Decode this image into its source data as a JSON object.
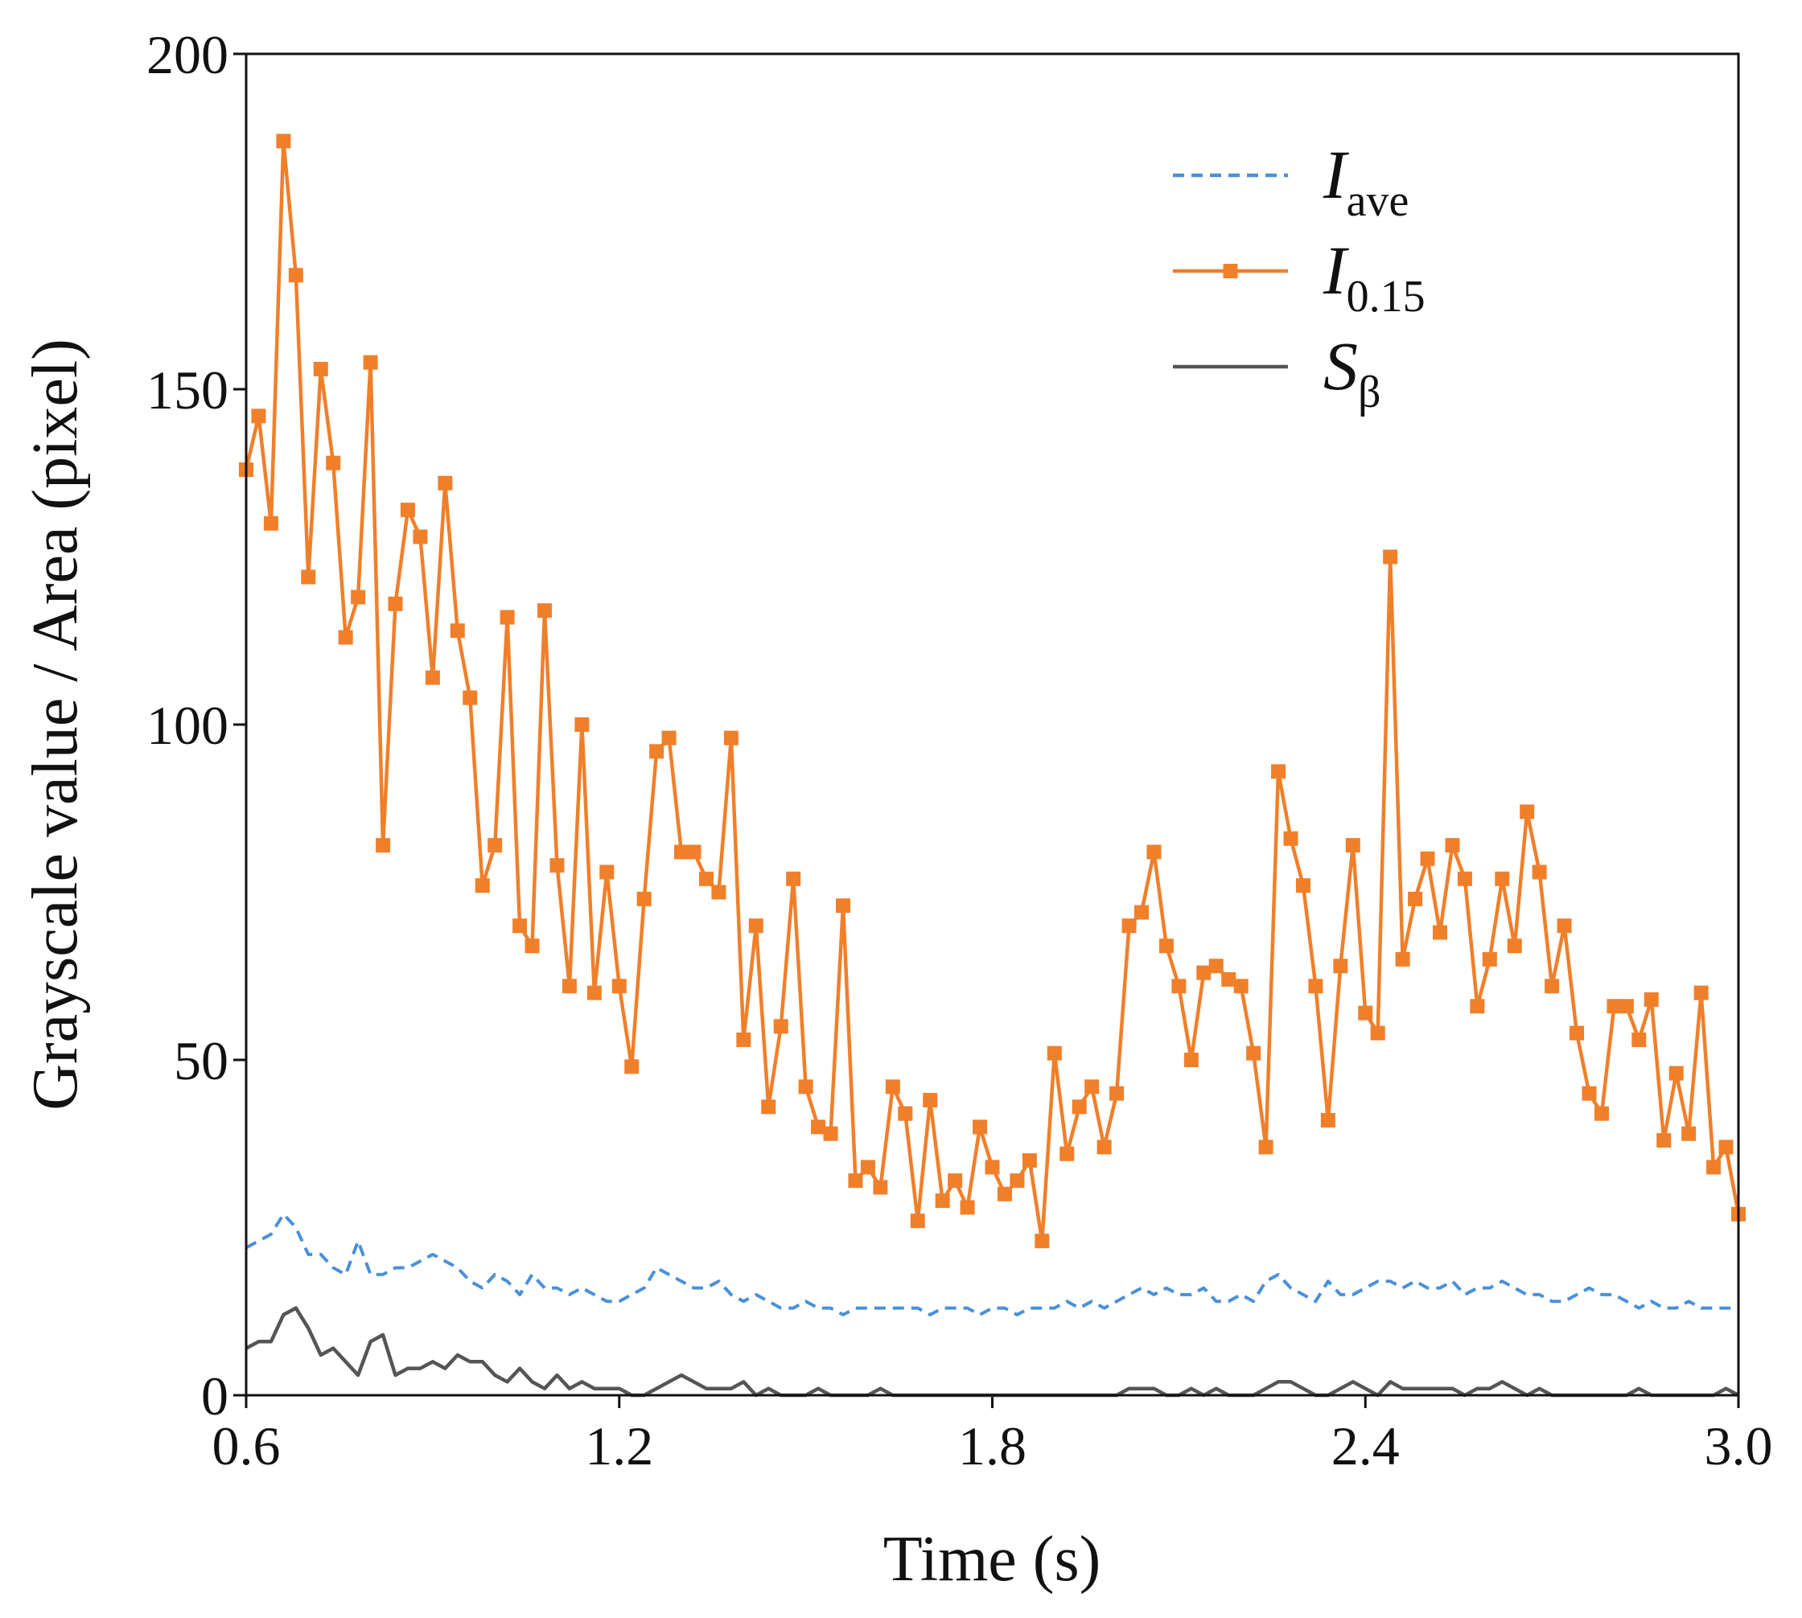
{
  "chart_data": {
    "type": "line",
    "xlabel": "Time (s)",
    "ylabel": "Grayscale value / Area (pixel)",
    "xlim": [
      0.6,
      3.0
    ],
    "ylim": [
      0,
      200
    ],
    "xticks": [
      0.6,
      1.2,
      1.8,
      2.4,
      {
        "value": 3.0,
        "label": "3.0"
      }
    ],
    "yticks": [
      0,
      50,
      100,
      150,
      200
    ],
    "grid": false,
    "legend": "upper right",
    "x": [
      0.6,
      0.62,
      0.64,
      0.66,
      0.68,
      0.7,
      0.72,
      0.74,
      0.76,
      0.78,
      0.8,
      0.82,
      0.84,
      0.86,
      0.88,
      0.9,
      0.92,
      0.94,
      0.96,
      0.98,
      1.0,
      1.02,
      1.04,
      1.06,
      1.08,
      1.1,
      1.12,
      1.14,
      1.16,
      1.18,
      1.2,
      1.22,
      1.24,
      1.26,
      1.28,
      1.3,
      1.32,
      1.34,
      1.36,
      1.38,
      1.4,
      1.42,
      1.44,
      1.46,
      1.48,
      1.5,
      1.52,
      1.54,
      1.56,
      1.58,
      1.6,
      1.62,
      1.64,
      1.66,
      1.68,
      1.7,
      1.72,
      1.74,
      1.76,
      1.78,
      1.8,
      1.82,
      1.84,
      1.86,
      1.88,
      1.9,
      1.92,
      1.94,
      1.96,
      1.98,
      2.0,
      2.02,
      2.04,
      2.06,
      2.08,
      2.1,
      2.12,
      2.14,
      2.16,
      2.18,
      2.2,
      2.22,
      2.24,
      2.26,
      2.28,
      2.3,
      2.32,
      2.34,
      2.36,
      2.38,
      2.4,
      2.42,
      2.44,
      2.46,
      2.48,
      2.5,
      2.52,
      2.54,
      2.56,
      2.58,
      2.6,
      2.62,
      2.64,
      2.66,
      2.68,
      2.7,
      2.72,
      2.74,
      2.76,
      2.78,
      2.8,
      2.82,
      2.84,
      2.86,
      2.88,
      2.9,
      2.92,
      2.94,
      2.96,
      2.98,
      3.0
    ],
    "series": [
      {
        "name": "I",
        "subscript": "ave",
        "color": "#4a90d9",
        "linestyle": "dashed",
        "marker": null,
        "values": [
          22,
          23,
          24,
          27,
          25,
          21,
          21,
          19,
          18,
          23,
          18,
          18,
          19,
          19,
          20,
          21,
          20,
          19,
          17,
          16,
          18,
          17,
          15,
          18,
          16,
          16,
          15,
          16,
          15,
          14,
          14,
          15,
          16,
          19,
          18,
          17,
          16,
          16,
          17,
          15,
          14,
          15,
          14,
          13,
          13,
          14,
          13,
          13,
          12,
          13,
          13,
          13,
          13,
          13,
          13,
          12,
          13,
          13,
          13,
          12,
          13,
          13,
          12,
          13,
          13,
          13,
          14,
          13,
          14,
          13,
          14,
          15,
          16,
          15,
          16,
          15,
          15,
          16,
          14,
          14,
          15,
          14,
          17,
          18,
          16,
          15,
          14,
          17,
          15,
          15,
          16,
          17,
          17,
          16,
          17,
          16,
          16,
          17,
          15,
          16,
          16,
          17,
          16,
          15,
          15,
          14,
          14,
          15,
          16,
          15,
          15,
          14,
          13,
          14,
          13,
          13,
          14,
          13,
          13,
          13,
          13
        ]
      },
      {
        "name": "I",
        "subscript": "0.15",
        "color": "#f07f2a",
        "linestyle": "solid",
        "marker": "square",
        "values": [
          138,
          146,
          130,
          187,
          167,
          122,
          153,
          139,
          113,
          119,
          154,
          82,
          118,
          132,
          128,
          107,
          136,
          114,
          104,
          76,
          82,
          116,
          70,
          67,
          117,
          79,
          61,
          100,
          60,
          78,
          61,
          49,
          74,
          96,
          98,
          81,
          81,
          77,
          75,
          98,
          53,
          70,
          43,
          55,
          77,
          46,
          40,
          39,
          73,
          32,
          34,
          31,
          46,
          42,
          26,
          44,
          29,
          32,
          28,
          40,
          34,
          30,
          32,
          35,
          23,
          51,
          36,
          43,
          46,
          37,
          45,
          70,
          72,
          81,
          67,
          61,
          50,
          63,
          64,
          62,
          61,
          51,
          37,
          93,
          83,
          76,
          61,
          41,
          64,
          82,
          57,
          54,
          125,
          65,
          74,
          80,
          69,
          82,
          77,
          58,
          65,
          77,
          67,
          87,
          78,
          61,
          70,
          54,
          45,
          42,
          58,
          58,
          53,
          59,
          38,
          48,
          39,
          60,
          34,
          37,
          27
        ]
      },
      {
        "name": "S",
        "subscript": "β",
        "color": "#555555",
        "linestyle": "solid",
        "marker": null,
        "values": [
          7,
          8,
          8,
          12,
          13,
          10,
          6,
          7,
          5,
          3,
          8,
          9,
          3,
          4,
          4,
          5,
          4,
          6,
          5,
          5,
          3,
          2,
          4,
          2,
          1,
          3,
          1,
          2,
          1,
          1,
          1,
          0,
          0,
          1,
          2,
          3,
          2,
          1,
          1,
          1,
          2,
          0,
          1,
          0,
          0,
          0,
          1,
          0,
          0,
          0,
          0,
          1,
          0,
          0,
          0,
          0,
          0,
          0,
          0,
          0,
          0,
          0,
          0,
          0,
          0,
          0,
          0,
          0,
          0,
          0,
          0,
          1,
          1,
          1,
          0,
          0,
          1,
          0,
          1,
          0,
          0,
          0,
          1,
          2,
          2,
          1,
          0,
          0,
          1,
          2,
          1,
          0,
          2,
          1,
          1,
          1,
          1,
          1,
          0,
          1,
          1,
          2,
          1,
          0,
          1,
          0,
          0,
          0,
          0,
          0,
          0,
          0,
          1,
          0,
          0,
          0,
          0,
          0,
          0,
          1,
          0
        ]
      }
    ]
  }
}
